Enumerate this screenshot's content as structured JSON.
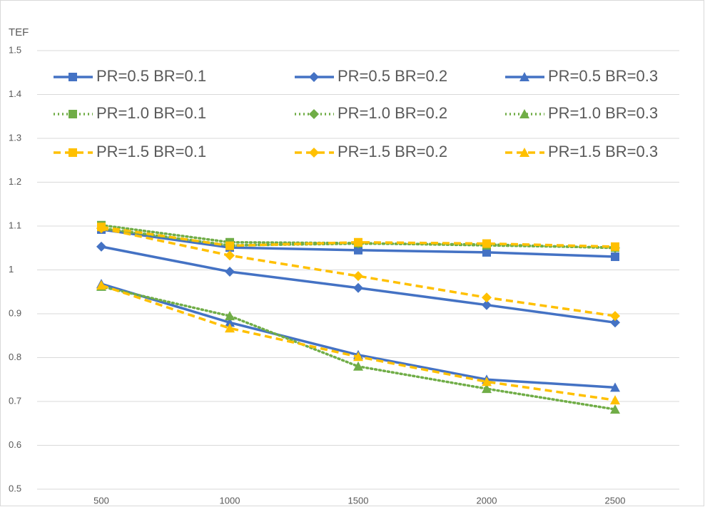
{
  "chart_data": {
    "type": "line",
    "y_label": "TEF",
    "categories": [
      "500",
      "1000",
      "1500",
      "2000",
      "2500"
    ],
    "ylim": [
      0.5,
      1.5
    ],
    "yticks": [
      0.5,
      0.6,
      0.7,
      0.8,
      0.9,
      1,
      1.1,
      1.2,
      1.3,
      1.4,
      1.5
    ],
    "grid": true,
    "series": [
      {
        "name": "PR=0.5 BR=0.1",
        "color": "#4472c4",
        "line_style": "solid",
        "marker": "square",
        "values": [
          1.092,
          1.051,
          1.045,
          1.04,
          1.03
        ]
      },
      {
        "name": "PR=0.5 BR=0.2",
        "color": "#4472c4",
        "line_style": "solid",
        "marker": "diamond",
        "values": [
          1.053,
          0.996,
          0.959,
          0.92,
          0.88
        ]
      },
      {
        "name": "PR=0.5 BR=0.3",
        "color": "#4472c4",
        "line_style": "solid",
        "marker": "triangle",
        "values": [
          0.968,
          0.88,
          0.806,
          0.75,
          0.732
        ]
      },
      {
        "name": "PR=1.0 BR=0.1",
        "color": "#70ad47",
        "line_style": "dotted",
        "marker": "square",
        "values": [
          1.102,
          1.063,
          1.061,
          1.056,
          1.051
        ]
      },
      {
        "name": "PR=1.0 BR=0.2",
        "color": "#70ad47",
        "line_style": "dotted",
        "marker": "diamond",
        "values": [
          1.095,
          1.056,
          1.06,
          1.058,
          1.05
        ]
      },
      {
        "name": "PR=1.0 BR=0.3",
        "color": "#70ad47",
        "line_style": "dotted",
        "marker": "triangle",
        "values": [
          0.962,
          0.895,
          0.78,
          0.729,
          0.682
        ]
      },
      {
        "name": "PR=1.5 BR=0.1",
        "color": "#ffc000",
        "line_style": "dashed",
        "marker": "square",
        "values": [
          1.098,
          1.055,
          1.063,
          1.06,
          1.053
        ]
      },
      {
        "name": "PR=1.5 BR=0.2",
        "color": "#ffc000",
        "line_style": "dashed",
        "marker": "diamond",
        "values": [
          1.095,
          1.033,
          0.986,
          0.937,
          0.895
        ]
      },
      {
        "name": "PR=1.5 BR=0.3",
        "color": "#ffc000",
        "line_style": "dashed",
        "marker": "triangle",
        "values": [
          0.965,
          0.867,
          0.802,
          0.745,
          0.703
        ]
      }
    ]
  }
}
